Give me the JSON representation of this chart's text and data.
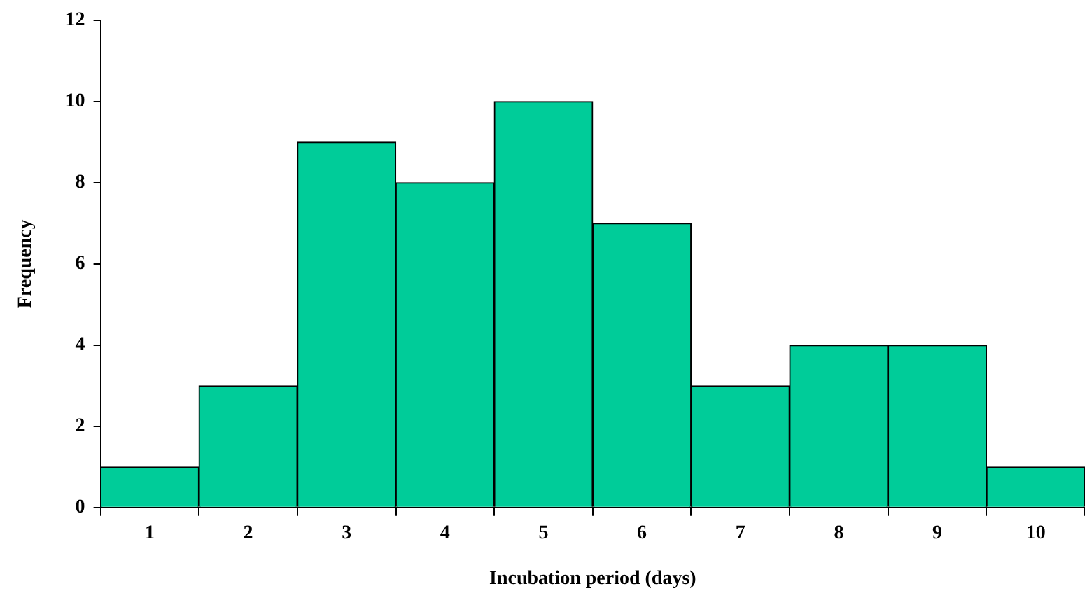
{
  "chart_data": {
    "type": "bar",
    "xlabel": "Incubation period (days)",
    "ylabel": "Frequency",
    "categories": [
      "1",
      "2",
      "3",
      "4",
      "5",
      "6",
      "7",
      "8",
      "9",
      "10"
    ],
    "values": [
      1,
      3,
      9,
      8,
      10,
      7,
      3,
      4,
      4,
      1
    ],
    "color": "#00cc99",
    "ylim": [
      0,
      12
    ],
    "yticks": [
      0,
      2,
      4,
      6,
      8,
      10,
      12
    ],
    "grid": false,
    "legend": false
  }
}
